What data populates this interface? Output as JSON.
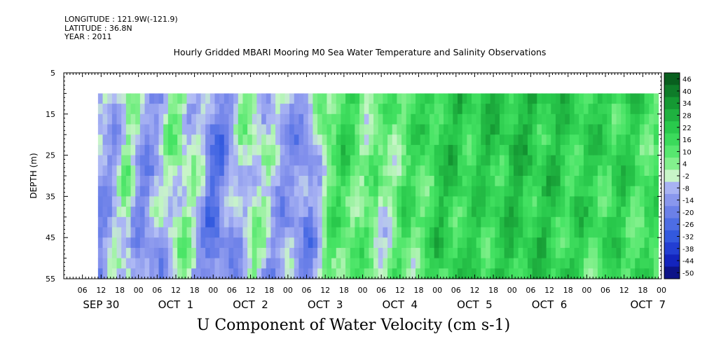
{
  "header": {
    "longitude": "LONGITUDE : 121.9W(-121.9)",
    "latitude": "LATITUDE : 36.8N",
    "year": "YEAR : 2011"
  },
  "chart_data": {
    "type": "heatmap",
    "title": "Hourly Gridded MBARI Mooring M0 Sea Water Temperature and Salinity Observations",
    "footer_label": "U Component of Water Velocity (cm s-1)",
    "ylabel": "DEPTH (m)",
    "y_range": [
      5,
      55
    ],
    "y_ticks": [
      5,
      15,
      25,
      35,
      45,
      55
    ],
    "data_depth_range": [
      10,
      55
    ],
    "x_hour_labels": [
      "06",
      "12",
      "18",
      "00",
      "06",
      "12",
      "18",
      "00",
      "06",
      "12",
      "18",
      "00",
      "06",
      "12",
      "18",
      "00",
      "06",
      "12",
      "18",
      "00",
      "06",
      "12",
      "18",
      "00",
      "06",
      "12",
      "18",
      "00",
      "06",
      "12",
      "18",
      "00"
    ],
    "x_date_labels": [
      "SEP 30",
      "OCT  1",
      "OCT  2",
      "OCT  3",
      "OCT  4",
      "OCT  5",
      "OCT  6",
      "OCT  7"
    ],
    "time_start_hour": 0,
    "data_start_hour": 11,
    "data_end_hour": 190,
    "time_end_hour": 192,
    "colorbar": {
      "labels": [
        "46",
        "40",
        "34",
        "28",
        "22",
        "16",
        "10",
        "4",
        "-2",
        "-8",
        "-14",
        "-20",
        "-26",
        "-32",
        "-38",
        "-44",
        "-50"
      ],
      "range": [
        -50,
        50
      ]
    },
    "velocity_profile": {
      "hours": [
        11,
        16,
        20,
        24,
        30,
        36,
        42,
        48,
        52,
        60,
        66,
        72,
        78,
        84,
        90,
        96,
        102,
        108,
        114,
        120,
        132,
        144,
        156,
        168,
        178,
        184,
        190
      ],
      "values": [
        -10,
        -6,
        2,
        -12,
        -8,
        6,
        -4,
        -20,
        -12,
        4,
        -6,
        -10,
        -14,
        10,
        16,
        8,
        4,
        12,
        14,
        22,
        20,
        24,
        22,
        18,
        20,
        16,
        14
      ]
    },
    "colors": {
      "negative_strong": "#0c2fd6",
      "negative_weak": "#a9b3f2",
      "near_zero": "#b9f3b7",
      "positive_weak": "#49e467",
      "positive_strong": "#14a93b"
    }
  }
}
